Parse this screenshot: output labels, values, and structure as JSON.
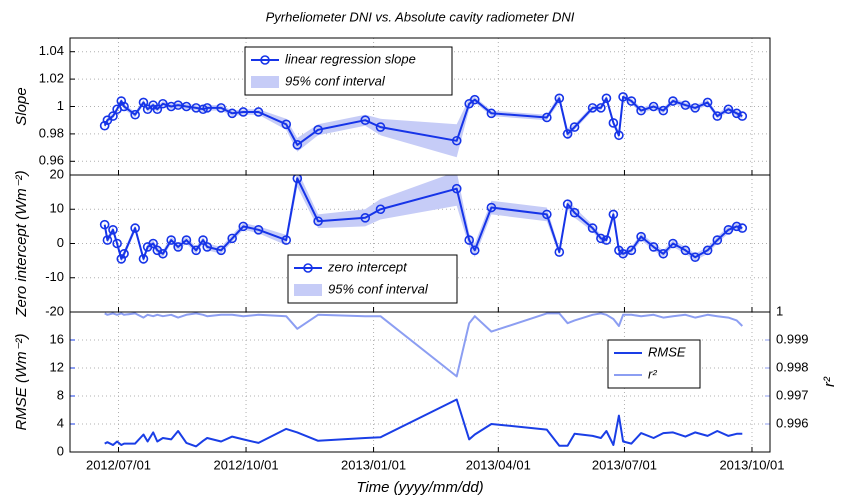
{
  "chart_data": [
    {
      "type": "line",
      "title": "Pyrheliometer DNI vs. Absolute cavity radiometer DNI",
      "ylabel": "Slope",
      "x": [
        "2012/06/21",
        "2012/06/23",
        "2012/06/27",
        "2012/06/30",
        "2012/07/03",
        "2012/07/05",
        "2012/07/13",
        "2012/07/19",
        "2012/07/22",
        "2012/07/26",
        "2012/07/29",
        "2012/08/02",
        "2012/08/08",
        "2012/08/13",
        "2012/08/19",
        "2012/08/26",
        "2012/08/31",
        "2012/09/03",
        "2012/09/13",
        "2012/09/21",
        "2012/09/29",
        "2012/10/10",
        "2012/10/30",
        "2012/11/07",
        "2012/11/22",
        "2012/12/26",
        "2013/01/06",
        "2013/03/02",
        "2013/03/11",
        "2013/03/15",
        "2013/03/27",
        "2013/05/06",
        "2013/05/15",
        "2013/05/21",
        "2013/05/26",
        "2013/06/08",
        "2013/06/14",
        "2013/06/18",
        "2013/06/23",
        "2013/06/27",
        "2013/06/30",
        "2013/07/06",
        "2013/07/13",
        "2013/07/22",
        "2013/07/29",
        "2013/08/05",
        "2013/08/14",
        "2013/08/21",
        "2013/08/30",
        "2013/09/06",
        "2013/09/14",
        "2013/09/20",
        "2013/09/24"
      ],
      "xlim": [
        "2012/05/27",
        "2013/10/14"
      ],
      "xticks": [
        "2012/07/01",
        "2012/10/01",
        "2013/01/01",
        "2013/04/01",
        "2013/07/01",
        "2013/10/01"
      ],
      "xtick_labels": false,
      "ylim": [
        0.95,
        1.05
      ],
      "yticks": [
        0.96,
        0.98,
        1,
        1.02,
        1.04
      ],
      "grid": true,
      "markers": true,
      "series": [
        {
          "name": "linear regression slope",
          "color": "#1634e8",
          "values": [
            0.986,
            0.99,
            0.993,
            0.998,
            1.004,
            1.0,
            0.994,
            1.003,
            0.998,
            1.001,
            0.998,
            1.002,
            1.0,
            1.001,
            1.0,
            0.999,
            0.998,
            0.999,
            0.999,
            0.995,
            0.996,
            0.996,
            0.987,
            0.972,
            0.983,
            0.99,
            0.985,
            0.975,
            1.002,
            1.005,
            0.995,
            0.992,
            1.006,
            0.98,
            0.985,
            0.999,
            0.999,
            1.006,
            0.988,
            0.979,
            1.007,
            1.004,
            0.997,
            1.0,
            0.997,
            1.004,
            1.001,
            0.999,
            1.003,
            0.993,
            0.998,
            0.995,
            0.993
          ]
        }
      ],
      "bands": [
        {
          "name": "95% conf interval",
          "color": "#c6ccf7",
          "lower": [
            0.984,
            0.988,
            0.991,
            0.996,
            1.002,
            0.998,
            0.992,
            1.001,
            0.996,
            0.999,
            0.996,
            1.0,
            0.998,
            0.999,
            0.998,
            0.997,
            0.996,
            0.997,
            0.997,
            0.993,
            0.994,
            0.994,
            0.983,
            0.967,
            0.979,
            0.986,
            0.979,
            0.963,
            0.998,
            1.003,
            0.993,
            0.99,
            1.003,
            0.976,
            0.983,
            0.997,
            0.997,
            1.004,
            0.986,
            0.976,
            1.005,
            1.002,
            0.995,
            0.998,
            0.995,
            1.002,
            0.999,
            0.997,
            1.001,
            0.991,
            0.996,
            0.993,
            0.991
          ],
          "upper": [
            0.988,
            0.992,
            0.995,
            1.0,
            1.006,
            1.002,
            0.996,
            1.005,
            1.0,
            1.003,
            1.0,
            1.004,
            1.002,
            1.003,
            1.002,
            1.001,
            1.0,
            1.001,
            1.001,
            0.997,
            0.998,
            0.998,
            0.991,
            0.977,
            0.987,
            0.994,
            0.991,
            0.987,
            1.006,
            1.007,
            0.997,
            0.994,
            1.009,
            0.984,
            0.987,
            1.001,
            1.001,
            1.008,
            0.99,
            0.982,
            1.009,
            1.006,
            0.999,
            1.002,
            0.999,
            1.006,
            1.003,
            1.001,
            1.005,
            0.995,
            1.0,
            0.997,
            0.995
          ]
        }
      ]
    },
    {
      "type": "line",
      "ylabel": "Zero intercept (Wm⁻²)",
      "x": [
        "2012/06/21",
        "2012/06/23",
        "2012/06/27",
        "2012/06/30",
        "2012/07/03",
        "2012/07/05",
        "2012/07/13",
        "2012/07/19",
        "2012/07/22",
        "2012/07/26",
        "2012/07/29",
        "2012/08/02",
        "2012/08/08",
        "2012/08/13",
        "2012/08/19",
        "2012/08/26",
        "2012/08/31",
        "2012/09/03",
        "2012/09/13",
        "2012/09/21",
        "2012/09/29",
        "2012/10/10",
        "2012/10/30",
        "2012/11/07",
        "2012/11/22",
        "2012/12/26",
        "2013/01/06",
        "2013/03/02",
        "2013/03/11",
        "2013/03/15",
        "2013/03/27",
        "2013/05/06",
        "2013/05/15",
        "2013/05/21",
        "2013/05/26",
        "2013/06/08",
        "2013/06/14",
        "2013/06/18",
        "2013/06/23",
        "2013/06/27",
        "2013/06/30",
        "2013/07/06",
        "2013/07/13",
        "2013/07/22",
        "2013/07/29",
        "2013/08/05",
        "2013/08/14",
        "2013/08/21",
        "2013/08/30",
        "2013/09/06",
        "2013/09/14",
        "2013/09/20",
        "2013/09/24"
      ],
      "xlim": [
        "2012/05/27",
        "2013/10/14"
      ],
      "xticks": [
        "2012/07/01",
        "2012/10/01",
        "2013/01/01",
        "2013/04/01",
        "2013/07/01",
        "2013/10/01"
      ],
      "xtick_labels": false,
      "ylim": [
        -20,
        20
      ],
      "yticks": [
        -20,
        -10,
        0,
        10,
        20
      ],
      "grid": true,
      "markers": true,
      "series": [
        {
          "name": "zero intercept",
          "color": "#1634e8",
          "values": [
            5.5,
            1,
            4,
            0,
            -4.5,
            -3,
            4.5,
            -4.5,
            -1,
            0,
            -2,
            -3,
            1,
            -1,
            1,
            -2,
            1,
            -1,
            -2,
            1.5,
            5,
            4,
            1,
            19,
            6.5,
            7.5,
            10,
            16,
            1,
            -2,
            10.5,
            8.5,
            -2.5,
            11.5,
            9,
            4.5,
            1.5,
            1,
            8.5,
            -2,
            -3,
            -2,
            2,
            -1,
            -3,
            0,
            -2,
            -4,
            -2,
            1,
            4,
            5,
            4.5
          ]
        }
      ],
      "bands": [
        {
          "name": "95% conf interval",
          "color": "#c6ccf7",
          "lower": [
            4.5,
            0,
            3,
            -1,
            -5.5,
            -4,
            3.5,
            -5.5,
            -2,
            -1,
            -3,
            -4,
            0,
            -2,
            0,
            -3,
            0,
            -2,
            -3,
            0.5,
            4,
            3,
            -0.5,
            16.5,
            4.5,
            5,
            7,
            11,
            -1,
            -4,
            8.5,
            6.5,
            -3.5,
            10,
            7.5,
            3.5,
            0.5,
            0,
            7,
            -3,
            -4,
            -3,
            1,
            -2,
            -4,
            -1,
            -3,
            -5,
            -3,
            0,
            3,
            4,
            3.5
          ],
          "upper": [
            6.5,
            2,
            5,
            1,
            -3.5,
            -2,
            5.5,
            -3.5,
            0,
            1,
            -1,
            -2,
            2,
            0,
            2,
            -1,
            2,
            0,
            -1,
            2.5,
            6,
            5,
            2.5,
            21.5,
            8.5,
            10,
            13,
            21,
            3,
            0,
            12.5,
            10.5,
            -1.5,
            13,
            10.5,
            5.5,
            2.5,
            2,
            10,
            -1,
            -2,
            -1,
            3,
            0,
            -2,
            1,
            -1,
            -3,
            -1,
            2,
            5,
            6,
            5.5
          ]
        }
      ]
    },
    {
      "type": "line",
      "ylabel": "RMSE (Wm⁻²)",
      "y2label": "r²",
      "xlabel": "Time (yyyy/mm/dd)",
      "x": [
        "2012/06/21",
        "2012/06/23",
        "2012/06/27",
        "2012/06/30",
        "2012/07/03",
        "2012/07/05",
        "2012/07/13",
        "2012/07/19",
        "2012/07/22",
        "2012/07/26",
        "2012/07/29",
        "2012/08/02",
        "2012/08/08",
        "2012/08/13",
        "2012/08/19",
        "2012/08/26",
        "2012/08/31",
        "2012/09/03",
        "2012/09/13",
        "2012/09/21",
        "2012/09/29",
        "2012/10/10",
        "2012/10/30",
        "2012/11/07",
        "2012/11/22",
        "2012/12/26",
        "2013/01/06",
        "2013/03/02",
        "2013/03/11",
        "2013/03/15",
        "2013/03/27",
        "2013/05/06",
        "2013/05/15",
        "2013/05/21",
        "2013/05/26",
        "2013/06/08",
        "2013/06/14",
        "2013/06/18",
        "2013/06/23",
        "2013/06/27",
        "2013/06/30",
        "2013/07/06",
        "2013/07/13",
        "2013/07/22",
        "2013/07/29",
        "2013/08/05",
        "2013/08/14",
        "2013/08/21",
        "2013/08/30",
        "2013/09/06",
        "2013/09/14",
        "2013/09/20",
        "2013/09/24"
      ],
      "xlim": [
        "2012/05/27",
        "2013/10/14"
      ],
      "xticks": [
        "2012/07/01",
        "2012/10/01",
        "2013/01/01",
        "2013/04/01",
        "2013/07/01",
        "2013/10/01"
      ],
      "xtick_labels": true,
      "ylim": [
        0,
        20
      ],
      "yticks": [
        0,
        4,
        8,
        12,
        16
      ],
      "y2lim": [
        0.995,
        1
      ],
      "y2ticks": [
        0.996,
        0.997,
        0.998,
        0.999,
        1
      ],
      "grid": true,
      "markers": false,
      "series": [
        {
          "name": "RMSE",
          "color": "#1a3ee6",
          "values": [
            1.2,
            1.4,
            1.0,
            1.5,
            1.0,
            1.2,
            1.2,
            2.5,
            1.5,
            2.8,
            1.5,
            2.0,
            1.8,
            3.0,
            1.3,
            0.8,
            1.6,
            2.0,
            1.5,
            2.2,
            1.8,
            1.3,
            3.3,
            2.8,
            1.6,
            2.0,
            2.1,
            7.5,
            1.8,
            2.5,
            4.0,
            3.2,
            0.9,
            0.9,
            2.6,
            2.3,
            2.0,
            3.0,
            1.0,
            5.2,
            1.5,
            1.2,
            2.7,
            2.0,
            2.7,
            2.8,
            2.2,
            2.8,
            2.3,
            3.0,
            2.3,
            2.6,
            2.6
          ]
        },
        {
          "name": "r²",
          "color": "#8c9ef2",
          "axis": "y2",
          "values": [
            0.99995,
            0.9999,
            0.99995,
            0.9999,
            0.99995,
            0.9999,
            0.99995,
            0.9998,
            0.9999,
            0.99985,
            0.9999,
            0.99985,
            0.9999,
            0.9998,
            0.9999,
            0.99995,
            0.9999,
            0.99985,
            0.9999,
            0.9999,
            0.99985,
            0.9999,
            0.99985,
            0.9994,
            0.9999,
            0.99985,
            0.99985,
            0.9977,
            0.9996,
            0.99985,
            0.9993,
            0.99995,
            0.99995,
            0.9996,
            0.9997,
            0.9999,
            0.99995,
            0.9999,
            0.99975,
            0.9995,
            0.9999,
            0.9999,
            0.99985,
            0.9999,
            0.9998,
            0.99985,
            0.9999,
            0.9998,
            0.9999,
            0.99985,
            0.9998,
            0.9997,
            0.9995
          ]
        }
      ]
    }
  ]
}
